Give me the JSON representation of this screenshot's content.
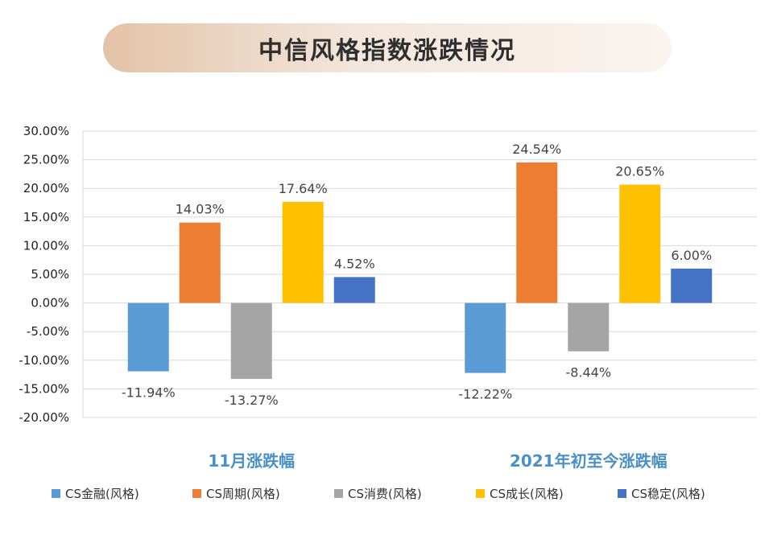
{
  "title": "中信风格指数涨跌情况",
  "chart_data": {
    "type": "bar",
    "categories": [
      "11月涨跌幅",
      "2021年初至今涨跌幅"
    ],
    "series": [
      {
        "name": "CS金融(风格)",
        "color": "#5b9bd5",
        "values": [
          -11.94,
          -12.22
        ],
        "labels": [
          "-11.94%",
          "-12.22%"
        ]
      },
      {
        "name": "CS周期(风格)",
        "color": "#ed7d31",
        "values": [
          14.03,
          24.54
        ],
        "labels": [
          "14.03%",
          "24.54%"
        ]
      },
      {
        "name": "CS消费(风格)",
        "color": "#a5a5a5",
        "values": [
          -13.27,
          -8.44
        ],
        "labels": [
          "-13.27%",
          "-8.44%"
        ]
      },
      {
        "name": "CS成长(风格)",
        "color": "#ffc000",
        "values": [
          17.64,
          20.65
        ],
        "labels": [
          "17.64%",
          "20.65%"
        ]
      },
      {
        "name": "CS稳定(风格)",
        "color": "#4472c4",
        "values": [
          4.52,
          6.0
        ],
        "labels": [
          "4.52%",
          "6.00%"
        ]
      }
    ],
    "ylim": [
      -20,
      30
    ],
    "yticks": [
      30,
      25,
      20,
      15,
      10,
      5,
      0,
      -5,
      -10,
      -15,
      -20
    ],
    "ytick_labels": [
      "30.00%",
      "25.00%",
      "20.00%",
      "15.00%",
      "10.00%",
      "5.00%",
      "0.00%",
      "-5.00%",
      "-10.00%",
      "-15.00%",
      "-20.00%"
    ],
    "grid": true,
    "legend_position": "bottom"
  }
}
